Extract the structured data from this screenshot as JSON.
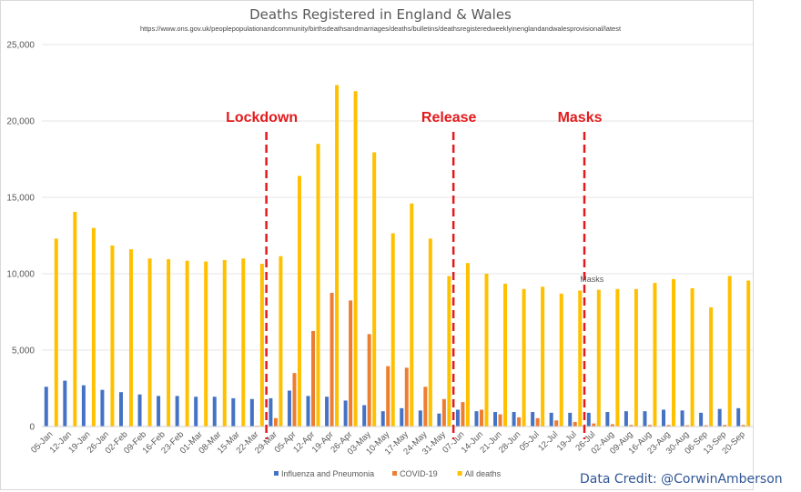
{
  "chart_data": {
    "type": "bar",
    "title": "Deaths Registered in England & Wales",
    "subtitle": "https://www.ons.gov.uk/peoplepopulationandcommunity/birthsdeathsandmarriages/deaths/bulletins/deathsregisteredweeklyinenglandandwalesprovisional/latest",
    "ylim": [
      0,
      25000
    ],
    "yticks": [
      "0",
      "5,000",
      "10,000",
      "15,000",
      "20,000",
      "25,000"
    ],
    "ytick_values": [
      0,
      5000,
      10000,
      15000,
      20000,
      25000
    ],
    "grid": true,
    "legend_position": "bottom",
    "categories": [
      "05-Jan",
      "12-Jan",
      "19-Jan",
      "26-Jan",
      "02-Feb",
      "09-Feb",
      "16-Feb",
      "23-Feb",
      "01-Mar",
      "08-Mar",
      "15-Mar",
      "22-Mar",
      "29-Mar",
      "05-Apr",
      "12-Apr",
      "19-Apr",
      "26-Apr",
      "03-May",
      "10-May",
      "17-May",
      "24-May",
      "31-May",
      "07-Jun",
      "14-Jun",
      "21-Jun",
      "28-Jun",
      "05-Jul",
      "12-Jul",
      "19-Jul",
      "26-Jul",
      "02-Aug",
      "09-Aug",
      "16-Aug",
      "23-Aug",
      "30-Aug",
      "06-Sep",
      "13-Sep",
      "20-Sep"
    ],
    "series": [
      {
        "name": "Influenza and Pneumonia",
        "color": "#4472c4",
        "values": [
          2600,
          3000,
          2700,
          2400,
          2250,
          2100,
          2000,
          2000,
          1950,
          1950,
          1850,
          1800,
          1850,
          2350,
          2000,
          1950,
          1700,
          1400,
          1000,
          1200,
          1050,
          850,
          1100,
          1000,
          950,
          950,
          950,
          900,
          900,
          900,
          950,
          1000,
          1000,
          1100,
          1050,
          900,
          1150,
          1200
        ]
      },
      {
        "name": "COVID-19",
        "color": "#ed7d31",
        "values": [
          0,
          0,
          0,
          0,
          0,
          0,
          0,
          0,
          0,
          0,
          0,
          50,
          550,
          3500,
          6250,
          8750,
          8250,
          6050,
          3950,
          3850,
          2600,
          1800,
          1600,
          1100,
          800,
          600,
          550,
          400,
          300,
          200,
          150,
          100,
          100,
          100,
          80,
          80,
          100,
          100
        ]
      },
      {
        "name": "All deaths",
        "color": "#ffc000",
        "values": [
          12300,
          14050,
          13000,
          11850,
          11600,
          11000,
          10950,
          10850,
          10800,
          10900,
          11000,
          10650,
          11150,
          16400,
          18500,
          22350,
          21950,
          17950,
          12650,
          14600,
          12300,
          9850,
          10700,
          10000,
          9350,
          9000,
          9150,
          8700,
          8900,
          8950,
          9000,
          9000,
          9400,
          9650,
          9050,
          7800,
          9850,
          9550
        ]
      }
    ],
    "annotations": [
      {
        "text": "Lockdown",
        "after_category": "22-Mar"
      },
      {
        "text": "Release",
        "after_category": "31-May"
      },
      {
        "text": "Masks",
        "after_category": "19-Jul"
      }
    ],
    "callout": {
      "text": "Masks",
      "category": "26-Jul"
    }
  },
  "credit": "Data Credit: @CorwinAmberson"
}
